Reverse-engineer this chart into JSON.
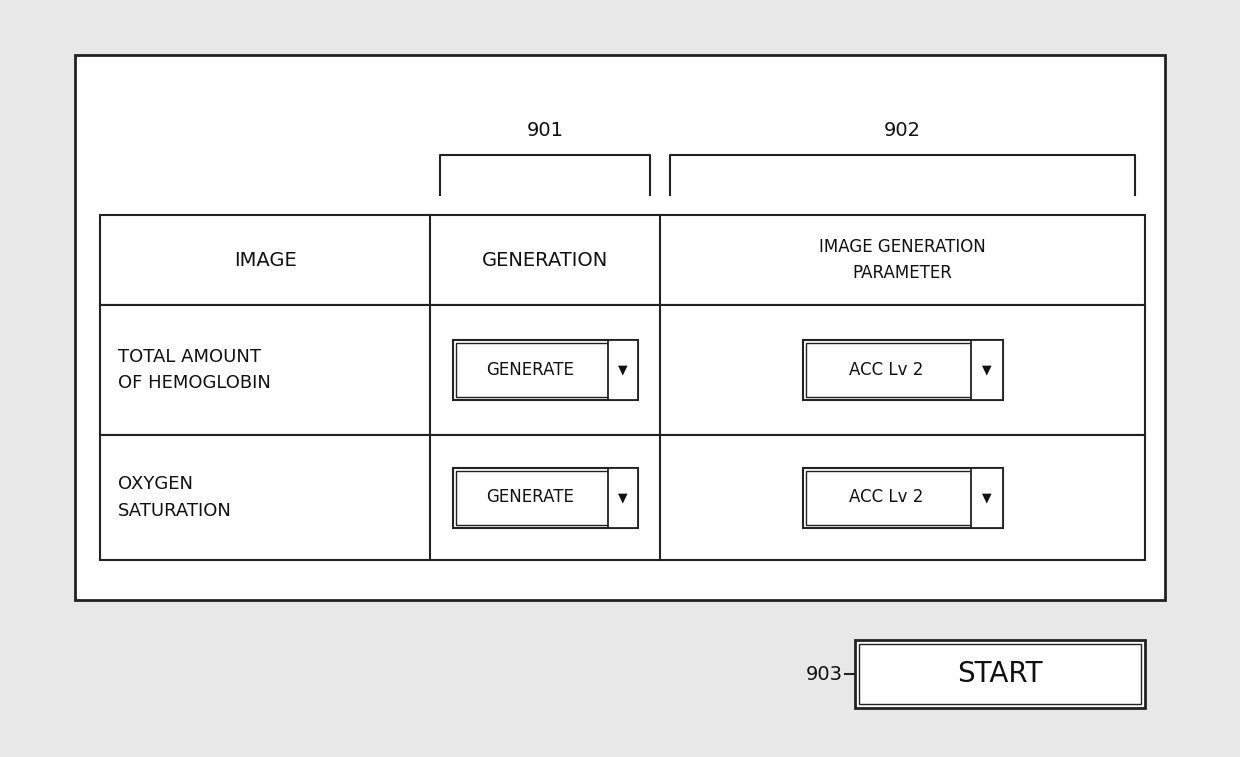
{
  "bg_color": "#e8e8e8",
  "fig_bg": "#e8e8e8",
  "white": "#ffffff",
  "fig_width": 12.4,
  "fig_height": 7.57,
  "label_901": "901",
  "label_902": "902",
  "label_903": "903",
  "header_image": "IMAGE",
  "header_gen": "GENERATION",
  "header_param": "IMAGE GENERATION\nPARAMETER",
  "row1_label": "TOTAL AMOUNT\nOF HEMOGLOBIN",
  "row1_btn1": "GENERATE",
  "row1_btn2": "ACC Lv 2",
  "row2_label": "OXYGEN\nSATURATION",
  "row2_btn1": "GENERATE",
  "row2_btn2": "ACC Lv 2",
  "start_label": "START",
  "font_color": "#111111",
  "line_color": "#222222"
}
